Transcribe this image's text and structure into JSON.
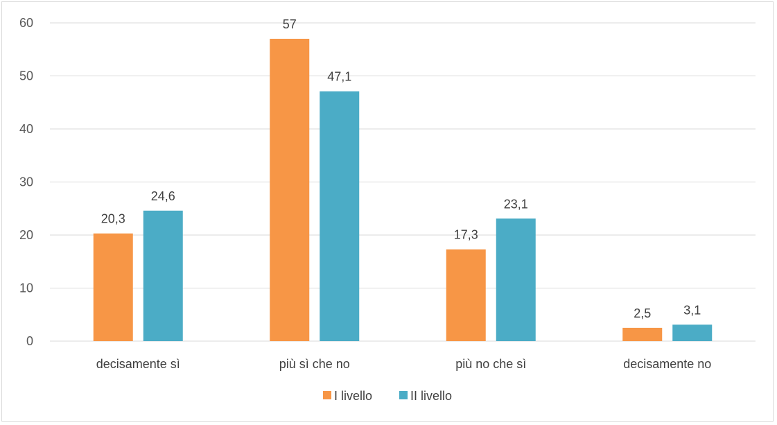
{
  "chart_data": {
    "type": "bar",
    "categories": [
      "decisamente sì",
      "più sì che no",
      "più no che sì",
      "decisamente no"
    ],
    "series": [
      {
        "name": "I livello",
        "values": [
          20.3,
          57,
          17.3,
          2.5
        ],
        "labels": [
          "20,3",
          "57",
          "17,3",
          "2,5"
        ],
        "color": "#F79646"
      },
      {
        "name": "II livello",
        "values": [
          24.6,
          47.1,
          23.1,
          3.1
        ],
        "labels": [
          "24,6",
          "47,1",
          "23,1",
          "3,1"
        ],
        "color": "#4BACC6"
      }
    ],
    "ylim": [
      0,
      60
    ],
    "yticks": [
      0,
      10,
      20,
      30,
      40,
      50,
      60
    ],
    "grid": true,
    "legend_position": "bottom",
    "gridline_color": "#d9d9d9",
    "title": "",
    "xlabel": "",
    "ylabel": ""
  }
}
